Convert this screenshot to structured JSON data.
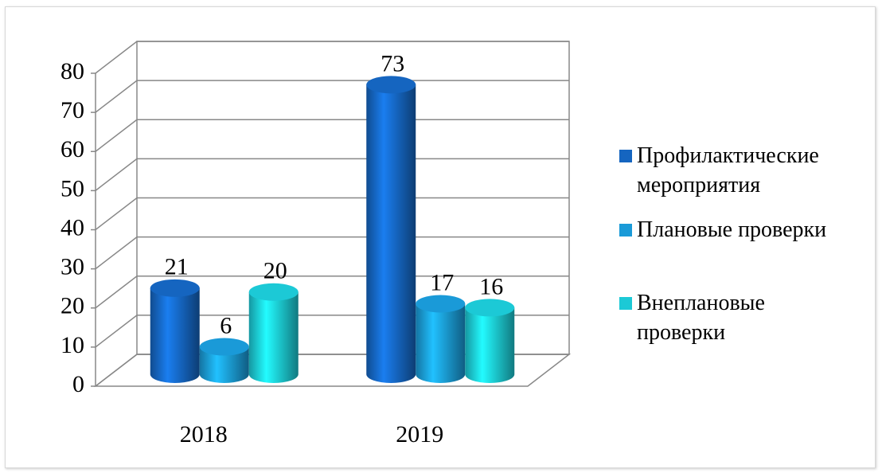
{
  "chart_data": {
    "type": "bar3d",
    "categories": [
      "2018",
      "2019"
    ],
    "series": [
      {
        "name": "Профилактические мероприятия",
        "color": "#1565c0",
        "values": [
          21,
          73
        ]
      },
      {
        "name": "Плановые проверки",
        "color": "#1a9ad8",
        "values": [
          6,
          17
        ]
      },
      {
        "name": "Внеплановые проверки",
        "color": "#1cc9d6",
        "values": [
          20,
          16
        ]
      }
    ],
    "ylim": [
      0,
      80
    ],
    "yticks": [
      0,
      10,
      20,
      30,
      40,
      50,
      60,
      70,
      80
    ],
    "grid": true,
    "legend": "right"
  }
}
